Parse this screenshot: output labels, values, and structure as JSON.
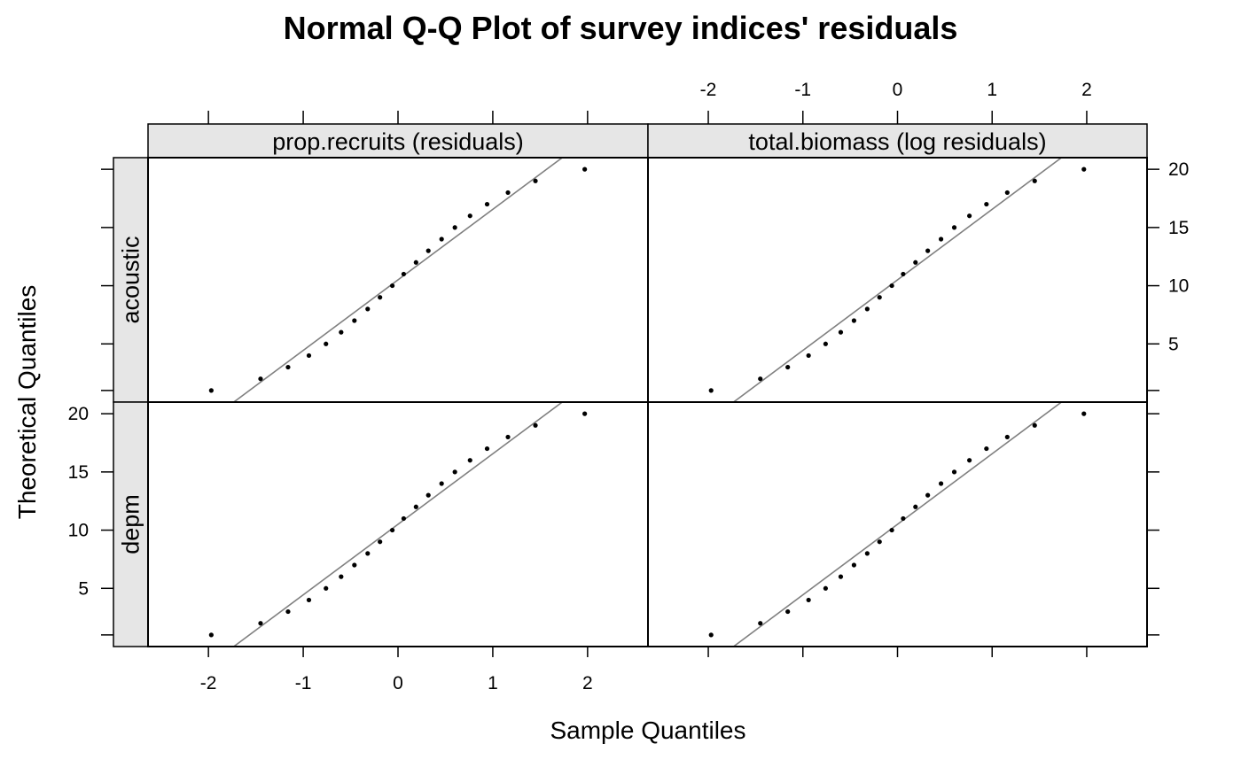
{
  "chart_data": {
    "type": "scatter",
    "title": "Normal Q-Q Plot of survey indices' residuals",
    "xlabel": "Sample Quantiles",
    "ylabel": "Theoretical Quantiles",
    "xlim": [
      -2.4,
      2.4
    ],
    "ylim": [
      0,
      21
    ],
    "x_ticks": [
      -2,
      -1,
      0,
      1,
      2
    ],
    "y_ticks": [
      5,
      10,
      15,
      20
    ],
    "strips": {
      "columns": [
        "prop.recruits (residuals)",
        "total.biomass (log residuals)"
      ],
      "rows": [
        "acoustic",
        "depm"
      ]
    },
    "reference_line": {
      "slope": 6.06,
      "intercept": 10.5
    },
    "panels": [
      {
        "column": "prop.recruits (residuals)",
        "row": "acoustic",
        "x": [
          -1.97,
          -1.45,
          -1.16,
          -0.94,
          -0.76,
          -0.6,
          -0.46,
          -0.32,
          -0.19,
          -0.06,
          0.06,
          0.19,
          0.32,
          0.46,
          0.6,
          0.76,
          0.94,
          1.16,
          1.45,
          1.97
        ],
        "y": [
          1,
          2,
          3,
          4,
          5,
          6,
          7,
          8,
          9,
          10,
          11,
          12,
          13,
          14,
          15,
          16,
          17,
          18,
          19,
          20
        ]
      },
      {
        "column": "total.biomass (log residuals)",
        "row": "acoustic",
        "x": [
          -1.97,
          -1.45,
          -1.16,
          -0.94,
          -0.76,
          -0.6,
          -0.46,
          -0.32,
          -0.19,
          -0.06,
          0.06,
          0.19,
          0.32,
          0.46,
          0.6,
          0.76,
          0.94,
          1.16,
          1.45,
          1.97
        ],
        "y": [
          1,
          2,
          3,
          4,
          5,
          6,
          7,
          8,
          9,
          10,
          11,
          12,
          13,
          14,
          15,
          16,
          17,
          18,
          19,
          20
        ]
      },
      {
        "column": "prop.recruits (residuals)",
        "row": "depm",
        "x": [
          -1.97,
          -1.45,
          -1.16,
          -0.94,
          -0.76,
          -0.6,
          -0.46,
          -0.32,
          -0.19,
          -0.06,
          0.06,
          0.19,
          0.32,
          0.46,
          0.6,
          0.76,
          0.94,
          1.16,
          1.45,
          1.97
        ],
        "y": [
          1,
          2,
          3,
          4,
          5,
          6,
          7,
          8,
          9,
          10,
          11,
          12,
          13,
          14,
          15,
          16,
          17,
          18,
          19,
          20
        ]
      },
      {
        "column": "total.biomass (log residuals)",
        "row": "depm",
        "x": [
          -1.97,
          -1.45,
          -1.16,
          -0.94,
          -0.76,
          -0.6,
          -0.46,
          -0.32,
          -0.19,
          -0.06,
          0.06,
          0.19,
          0.32,
          0.46,
          0.6,
          0.76,
          0.94,
          1.16,
          1.45,
          1.97
        ],
        "y": [
          1,
          2,
          3,
          4,
          5,
          6,
          7,
          8,
          9,
          10,
          11,
          12,
          13,
          14,
          15,
          16,
          17,
          18,
          19,
          20
        ]
      }
    ]
  }
}
